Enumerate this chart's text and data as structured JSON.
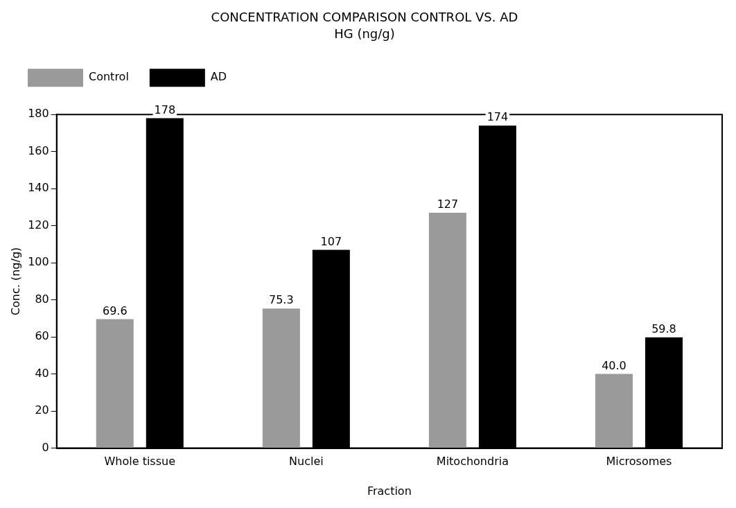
{
  "chart_data": {
    "type": "bar",
    "title": "CONCENTRATION COMPARISON CONTROL VS. AD",
    "subtitle": "HG (ng/g)",
    "xlabel": "Fraction",
    "ylabel": "Conc. (ng/g)",
    "categories": [
      "Whole tissue",
      "Nuclei",
      "Mitochondria",
      "Microsomes"
    ],
    "series": [
      {
        "name": "Control",
        "color": "#9a9a9a",
        "values": [
          69.6,
          75.3,
          127,
          40.0
        ],
        "value_labels": [
          "69.6",
          "75.3",
          "127",
          "40.0"
        ]
      },
      {
        "name": "AD",
        "color": "#000000",
        "values": [
          178,
          107,
          174,
          59.8
        ],
        "value_labels": [
          "178",
          "107",
          "174",
          "59.8"
        ]
      }
    ],
    "ylim": [
      0,
      180
    ],
    "yticks": [
      0,
      20,
      40,
      60,
      80,
      100,
      120,
      140,
      160,
      180
    ],
    "grid": false,
    "legend": "top left"
  }
}
